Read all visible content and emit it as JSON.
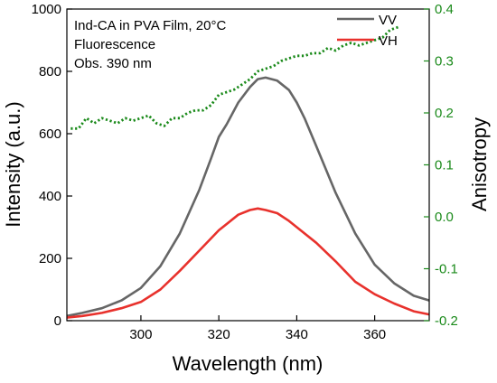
{
  "chart_data": {
    "type": "line",
    "annotations": [
      "Ind-CA in PVA Film, 20°C",
      "Fluorescence",
      "Obs. 390 nm"
    ],
    "xlabel": "Wavelength (nm)",
    "ylabel_left": "Intensity (a.u.)",
    "ylabel_right": "Anisotropy",
    "xlim": [
      281,
      374
    ],
    "ylim_left": [
      0,
      1000
    ],
    "ylim_right": [
      -0.2,
      0.4
    ],
    "x_ticks": [
      "300",
      "320",
      "340",
      "360"
    ],
    "y_left_ticks": [
      "0",
      "200",
      "400",
      "600",
      "800",
      "1000"
    ],
    "y_right_ticks": [
      "-0.2",
      "-0.1",
      "0.0",
      "0.1",
      "0.2",
      "0.3",
      "0.4"
    ],
    "legend": {
      "position": "top-right",
      "entries": [
        "VV",
        "VH"
      ]
    },
    "colors": {
      "VV": "#666666",
      "VH": "#e8312c",
      "anisotropy": "#1a8a1a",
      "right_axis": "#1a8a1a"
    },
    "series": [
      {
        "name": "VV",
        "axis": "left",
        "style": "solid",
        "x": [
          281,
          285,
          290,
          295,
          300,
          305,
          310,
          315,
          318,
          320,
          322,
          325,
          328,
          330,
          332,
          335,
          338,
          340,
          342,
          345,
          350,
          355,
          360,
          365,
          370,
          374
        ],
        "values": [
          15,
          25,
          40,
          65,
          105,
          175,
          280,
          420,
          520,
          590,
          630,
          700,
          750,
          775,
          780,
          770,
          740,
          700,
          650,
          560,
          410,
          280,
          180,
          120,
          80,
          65
        ]
      },
      {
        "name": "VH",
        "axis": "left",
        "style": "solid",
        "x": [
          281,
          285,
          290,
          295,
          300,
          305,
          310,
          315,
          320,
          325,
          328,
          330,
          332,
          335,
          338,
          340,
          345,
          350,
          355,
          360,
          365,
          370,
          374
        ],
        "values": [
          10,
          15,
          25,
          40,
          60,
          100,
          160,
          225,
          290,
          340,
          355,
          360,
          355,
          345,
          320,
          300,
          250,
          190,
          125,
          85,
          55,
          30,
          20
        ]
      },
      {
        "name": "Anisotropy",
        "axis": "right",
        "style": "dotted",
        "x": [
          282,
          284,
          286,
          288,
          290,
          292,
          294,
          296,
          298,
          300,
          302,
          304,
          306,
          308,
          310,
          312,
          314,
          316,
          318,
          320,
          322,
          324,
          326,
          328,
          330,
          332,
          334,
          336,
          338,
          340,
          342,
          344,
          346,
          348,
          350,
          352,
          354,
          356,
          358,
          360,
          362,
          364,
          366
        ],
        "values": [
          0.17,
          0.17,
          0.19,
          0.18,
          0.19,
          0.185,
          0.18,
          0.19,
          0.185,
          0.19,
          0.195,
          0.18,
          0.175,
          0.19,
          0.19,
          0.2,
          0.205,
          0.205,
          0.215,
          0.235,
          0.24,
          0.245,
          0.255,
          0.265,
          0.28,
          0.285,
          0.29,
          0.3,
          0.305,
          0.31,
          0.31,
          0.315,
          0.315,
          0.325,
          0.32,
          0.33,
          0.335,
          0.33,
          0.335,
          0.34,
          0.345,
          0.36,
          0.365
        ]
      }
    ]
  }
}
